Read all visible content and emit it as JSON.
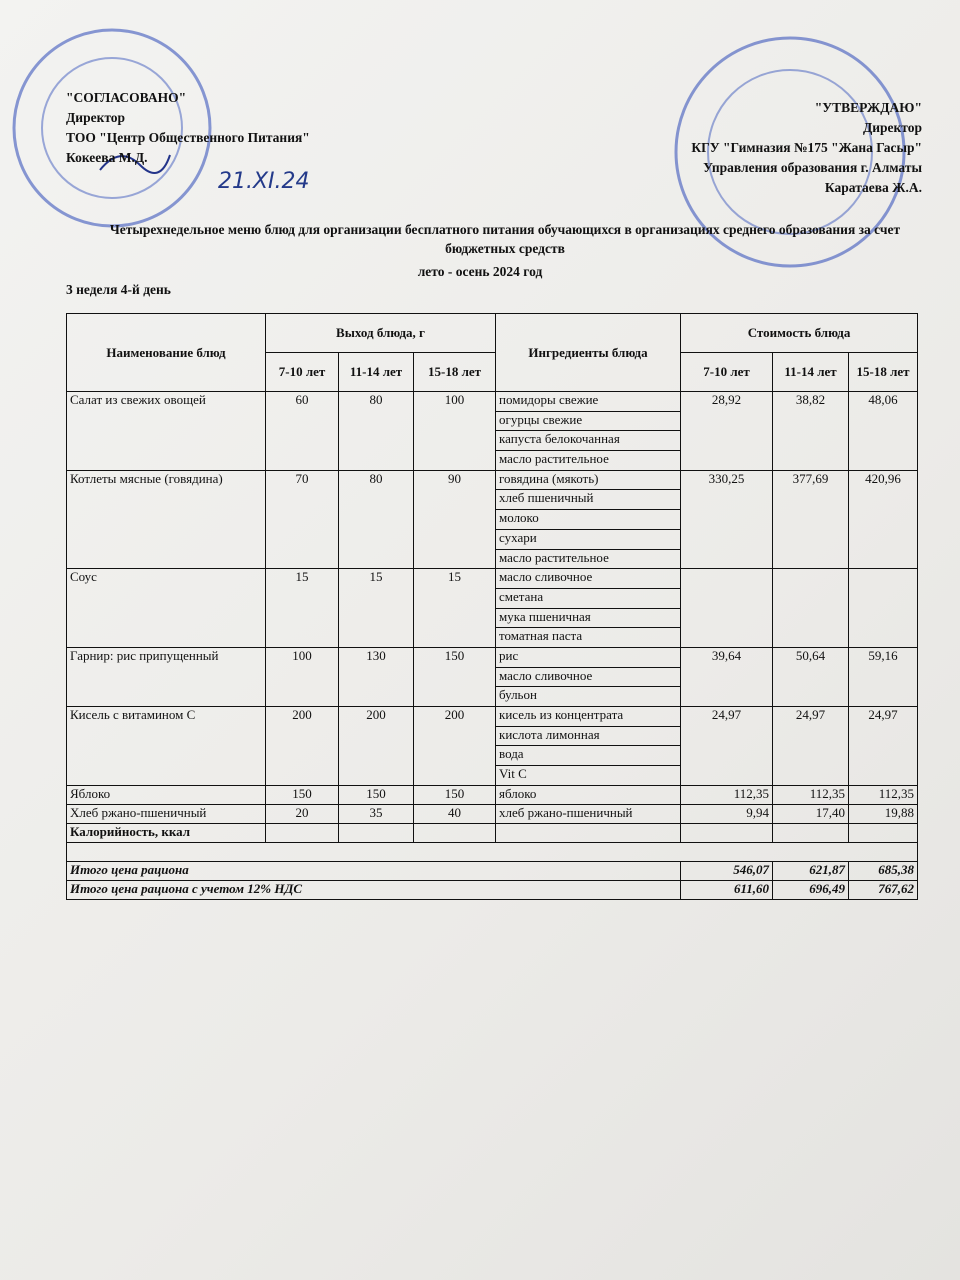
{
  "header": {
    "left": [
      "\"СОГЛАСОВАНО\"",
      "Директор",
      "ТОО \"Центр Общественного Питания\"",
      "Кокеева М.Д."
    ],
    "left_date": "21.XI.24",
    "right": [
      "\"УТВЕРЖДАЮ\"",
      "Директор",
      "КГУ \"Гимназия №175 \"Жана Гасыр\"",
      "Управления образования г. Алматы",
      "Каратаева Ж.А."
    ]
  },
  "title": "Четырехнедельное меню блюд для организации бесплатного питания обучающихся в организациях среднего образования за счет бюджетных средств",
  "season": "лето - осень 2024 год",
  "day": "3 неделя 4-й день",
  "table": {
    "headers": {
      "name": "Наименование блюд",
      "yield": "Выход блюда, г",
      "ingredients": "Ингредиенты блюда",
      "cost": "Стоимость блюда"
    },
    "ages": [
      "7-10 лет",
      "11-14 лет",
      "15-18 лет"
    ],
    "dishes": [
      {
        "name": "Салат из свежих овощей",
        "yield": [
          "60",
          "80",
          "100"
        ],
        "ingredients": [
          "помидоры свежие",
          "огурцы свежие",
          "капуста белокочанная",
          "масло растительное"
        ],
        "cost": [
          "28,92",
          "38,82",
          "48,06"
        ]
      },
      {
        "name": "Котлеты мясные (говядина)",
        "yield": [
          "70",
          "80",
          "90"
        ],
        "ingredients": [
          "говядина (мякоть)",
          "хлеб пшеничный",
          "молоко",
          "сухари",
          "масло растительное"
        ],
        "cost": [
          "330,25",
          "377,69",
          "420,96"
        ]
      },
      {
        "name": "Соус",
        "yield": [
          "15",
          "15",
          "15"
        ],
        "ingredients": [
          "масло сливочное",
          "сметана",
          "мука пшеничная",
          "томатная паста"
        ]
      },
      {
        "name": "Гарнир: рис припущенный",
        "yield": [
          "100",
          "130",
          "150"
        ],
        "ingredients": [
          "рис",
          "масло сливочное",
          "бульон"
        ],
        "cost": [
          "39,64",
          "50,64",
          "59,16"
        ]
      },
      {
        "name": "Кисель с витамином С",
        "yield": [
          "200",
          "200",
          "200"
        ],
        "ingredients": [
          "кисель из концентрата",
          "кислота лимонная",
          "вода",
          "Vit C"
        ],
        "cost": [
          "24,97",
          "24,97",
          "24,97"
        ]
      },
      {
        "name": "Яблоко",
        "yield": [
          "150",
          "150",
          "150"
        ],
        "ingredients": [
          "яблоко"
        ],
        "cost": [
          "112,35",
          "112,35",
          "112,35"
        ]
      },
      {
        "name": "Хлеб ржано-пшеничный",
        "yield": [
          "20",
          "35",
          "40"
        ],
        "ingredients": [
          "хлеб ржано-пшеничный"
        ],
        "cost": [
          "9,94",
          "17,40",
          "19,88"
        ]
      }
    ],
    "calories": "Калорийность, ккал",
    "totals": [
      {
        "label": "Итого цена рациона",
        "values": [
          "546,07",
          "621,87",
          "685,38"
        ]
      },
      {
        "label": "Итого цена рациона с учетом 12% НДС",
        "values": [
          "611,60",
          "696,49",
          "767,62"
        ]
      }
    ]
  }
}
